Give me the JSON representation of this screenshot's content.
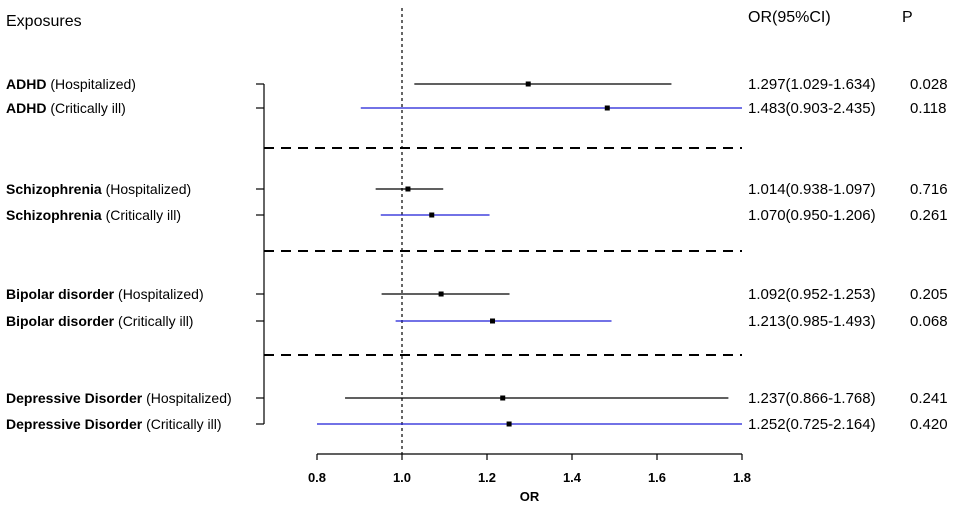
{
  "header": {
    "exposures_label": "Exposures",
    "or_ci_label": "OR(95%CI)",
    "p_label": "P"
  },
  "chart_data": {
    "type": "forest",
    "xlabel": "OR",
    "xlim": [
      0.8,
      1.8
    ],
    "xticks": [
      0.8,
      1.0,
      1.2,
      1.4,
      1.6,
      1.8
    ],
    "xtick_labels": [
      "0.8",
      "1.0",
      "1.2",
      "1.4",
      "1.6",
      "1.8"
    ],
    "reference_line": 1.0,
    "colors": {
      "hospitalized": "#000000",
      "critically_ill": "#1f1fd6"
    },
    "groups": [
      {
        "name": "ADHD",
        "rows": [
          {
            "exposure": "ADHD",
            "outcome": "(Hospitalized)",
            "or": 1.297,
            "lo": 1.029,
            "hi": 1.634,
            "or_ci_text": "1.297(1.029-1.634)",
            "p": "0.028",
            "series": "hospitalized"
          },
          {
            "exposure": "ADHD",
            "outcome": "(Critically ill)",
            "or": 1.483,
            "lo": 0.903,
            "hi": 2.435,
            "or_ci_text": "1.483(0.903-2.435)",
            "p": "0.118",
            "series": "critically_ill"
          }
        ]
      },
      {
        "name": "Schizophrenia",
        "rows": [
          {
            "exposure": "Schizophrenia",
            "outcome": "(Hospitalized)",
            "or": 1.014,
            "lo": 0.938,
            "hi": 1.097,
            "or_ci_text": "1.014(0.938-1.097)",
            "p": "0.716",
            "series": "hospitalized"
          },
          {
            "exposure": "Schizophrenia",
            "outcome": "(Critically ill)",
            "or": 1.07,
            "lo": 0.95,
            "hi": 1.206,
            "or_ci_text": "1.070(0.950-1.206)",
            "p": "0.261",
            "series": "critically_ill"
          }
        ]
      },
      {
        "name": "Bipolar disorder",
        "rows": [
          {
            "exposure": "Bipolar disorder",
            "outcome": "(Hospitalized)",
            "or": 1.092,
            "lo": 0.952,
            "hi": 1.253,
            "or_ci_text": "1.092(0.952-1.253)",
            "p": "0.205",
            "series": "hospitalized"
          },
          {
            "exposure": "Bipolar disorder",
            "outcome": "(Critically ill)",
            "or": 1.213,
            "lo": 0.985,
            "hi": 1.493,
            "or_ci_text": "1.213(0.985-1.493)",
            "p": "0.068",
            "series": "critically_ill"
          }
        ]
      },
      {
        "name": "Depressive Disorder",
        "rows": [
          {
            "exposure": "Depressive Disorder",
            "outcome": "(Hospitalized)",
            "or": 1.237,
            "lo": 0.866,
            "hi": 1.768,
            "or_ci_text": "1.237(0.866-1.768)",
            "p": "0.241",
            "series": "hospitalized"
          },
          {
            "exposure": "Depressive Disorder",
            "outcome": "(Critically ill)",
            "or": 1.252,
            "lo": 0.725,
            "hi": 2.164,
            "or_ci_text": "1.252(0.725-2.164)",
            "p": "0.420",
            "series": "critically_ill"
          }
        ]
      }
    ]
  }
}
